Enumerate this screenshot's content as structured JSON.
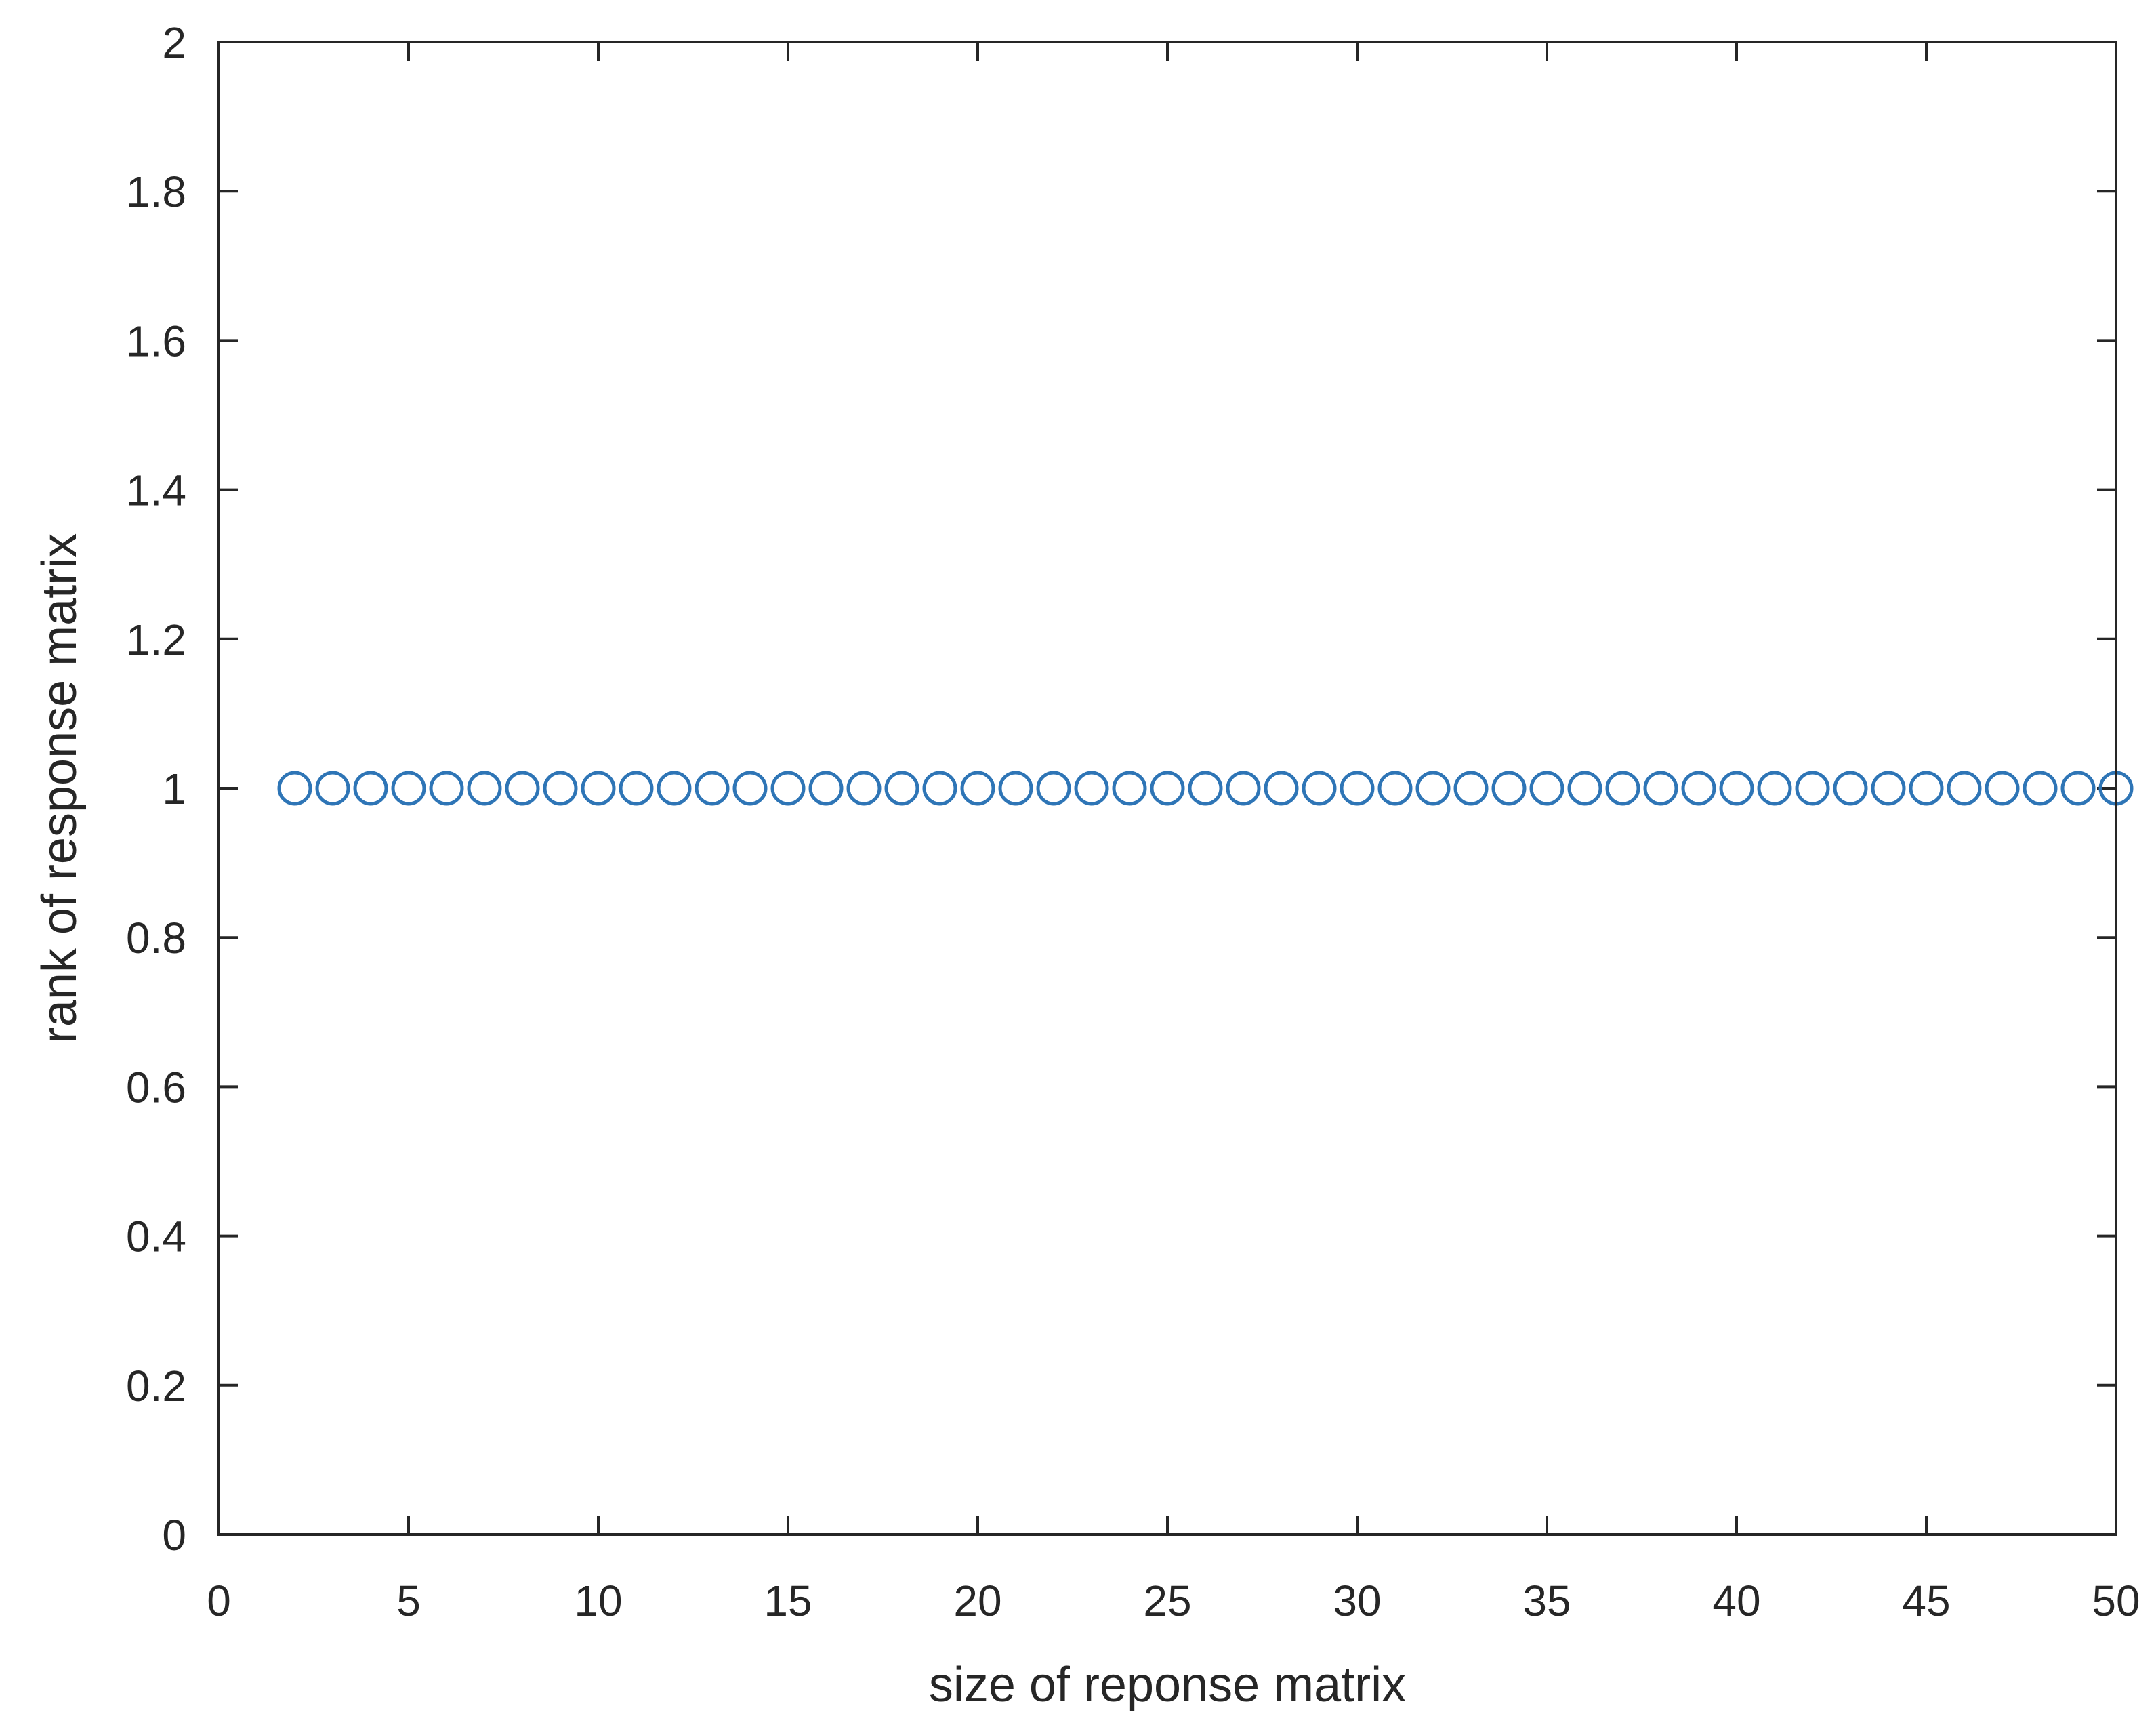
{
  "chart_data": {
    "type": "scatter",
    "xlabel": "size of reponse matrix",
    "ylabel": "rank of response matrix",
    "xlim": [
      0,
      50
    ],
    "ylim": [
      0,
      2
    ],
    "xticks": [
      0,
      5,
      10,
      15,
      20,
      25,
      30,
      35,
      40,
      45,
      50
    ],
    "yticks": [
      0,
      0.2,
      0.4,
      0.6,
      0.8,
      1,
      1.2,
      1.4,
      1.6,
      1.8,
      2
    ],
    "xtick_labels": [
      "0",
      "5",
      "10",
      "15",
      "20",
      "25",
      "30",
      "35",
      "40",
      "45",
      "50"
    ],
    "ytick_labels": [
      "0",
      "0.2",
      "0.4",
      "0.6",
      "0.8",
      "1",
      "1.2",
      "1.4",
      "1.6",
      "1.8",
      "2"
    ],
    "grid": false,
    "marker": "circle-open",
    "color": "#2E75B6",
    "series": [
      {
        "x": [
          2,
          3,
          4,
          5,
          6,
          7,
          8,
          9,
          10,
          11,
          12,
          13,
          14,
          15,
          16,
          17,
          18,
          19,
          20,
          21,
          22,
          23,
          24,
          25,
          26,
          27,
          28,
          29,
          30,
          31,
          32,
          33,
          34,
          35,
          36,
          37,
          38,
          39,
          40,
          41,
          42,
          43,
          44,
          45,
          46,
          47,
          48,
          49,
          50
        ],
        "y": [
          1,
          1,
          1,
          1,
          1,
          1,
          1,
          1,
          1,
          1,
          1,
          1,
          1,
          1,
          1,
          1,
          1,
          1,
          1,
          1,
          1,
          1,
          1,
          1,
          1,
          1,
          1,
          1,
          1,
          1,
          1,
          1,
          1,
          1,
          1,
          1,
          1,
          1,
          1,
          1,
          1,
          1,
          1,
          1,
          1,
          1,
          1,
          1,
          1
        ]
      }
    ]
  }
}
